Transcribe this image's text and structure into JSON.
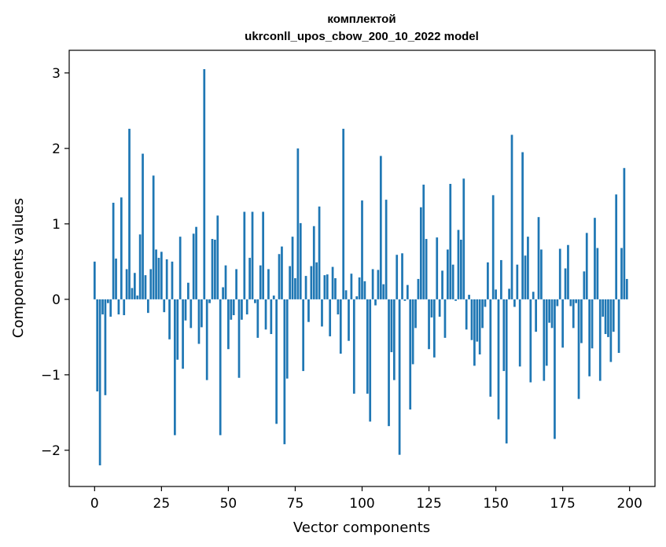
{
  "chart_data": {
    "type": "bar",
    "title_lines": [
      "комплектой",
      "ukrconll_upos_cbow_200_10_2022 model"
    ],
    "xlabel": "Vector components",
    "ylabel": "Components values",
    "xlim": [
      -9.5,
      209.5
    ],
    "ylim": [
      -2.48,
      3.3
    ],
    "xticks": [
      0,
      25,
      50,
      75,
      100,
      125,
      150,
      175,
      200
    ],
    "yticks": [
      -2,
      -1,
      0,
      1,
      2,
      3
    ],
    "ytick_labels": [
      "−2",
      "−1",
      "0",
      "1",
      "2",
      "3"
    ],
    "bar_color": "#1f77b4",
    "grid": false,
    "x": [
      0,
      1,
      2,
      3,
      4,
      5,
      6,
      7,
      8,
      9,
      10,
      11,
      12,
      13,
      14,
      15,
      16,
      17,
      18,
      19,
      20,
      21,
      22,
      23,
      24,
      25,
      26,
      27,
      28,
      29,
      30,
      31,
      32,
      33,
      34,
      35,
      36,
      37,
      38,
      39,
      40,
      41,
      42,
      43,
      44,
      45,
      46,
      47,
      48,
      49,
      50,
      51,
      52,
      53,
      54,
      55,
      56,
      57,
      58,
      59,
      60,
      61,
      62,
      63,
      64,
      65,
      66,
      67,
      68,
      69,
      70,
      71,
      72,
      73,
      74,
      75,
      76,
      77,
      78,
      79,
      80,
      81,
      82,
      83,
      84,
      85,
      86,
      87,
      88,
      89,
      90,
      91,
      92,
      93,
      94,
      95,
      96,
      97,
      98,
      99,
      100,
      101,
      102,
      103,
      104,
      105,
      106,
      107,
      108,
      109,
      110,
      111,
      112,
      113,
      114,
      115,
      116,
      117,
      118,
      119,
      120,
      121,
      122,
      123,
      124,
      125,
      126,
      127,
      128,
      129,
      130,
      131,
      132,
      133,
      134,
      135,
      136,
      137,
      138,
      139,
      140,
      141,
      142,
      143,
      144,
      145,
      146,
      147,
      148,
      149,
      150,
      151,
      152,
      153,
      154,
      155,
      156,
      157,
      158,
      159,
      160,
      161,
      162,
      163,
      164,
      165,
      166,
      167,
      168,
      169,
      170,
      171,
      172,
      173,
      174,
      175,
      176,
      177,
      178,
      179,
      180,
      181,
      182,
      183,
      184,
      185,
      186,
      187,
      188,
      189,
      190,
      191,
      192,
      193,
      194,
      195,
      196,
      197,
      198,
      199
    ],
    "values": [
      0.5,
      -1.22,
      -2.2,
      -0.2,
      -1.27,
      -0.05,
      -0.23,
      1.28,
      0.54,
      -0.2,
      1.35,
      -0.21,
      0.4,
      2.26,
      0.15,
      0.35,
      0.05,
      0.86,
      1.93,
      0.32,
      -0.18,
      0.4,
      1.64,
      0.66,
      0.55,
      0.63,
      -0.17,
      0.53,
      -0.53,
      0.5,
      -1.8,
      -0.8,
      0.83,
      -0.92,
      -0.28,
      0.22,
      -0.38,
      0.87,
      0.96,
      -0.59,
      -0.37,
      3.05,
      -1.07,
      -0.05,
      0.8,
      0.79,
      1.11,
      -1.8,
      0.16,
      0.45,
      -0.66,
      -0.27,
      -0.21,
      0.4,
      -1.04,
      -0.27,
      1.16,
      -0.2,
      0.55,
      1.16,
      -0.05,
      -0.51,
      0.45,
      1.16,
      -0.4,
      0.4,
      -0.46,
      0.05,
      -1.65,
      0.6,
      0.7,
      -1.92,
      -1.05,
      0.44,
      0.83,
      0.28,
      2.0,
      1.01,
      -0.95,
      0.31,
      -0.3,
      0.44,
      0.97,
      0.49,
      1.23,
      -0.36,
      0.32,
      0.33,
      -0.49,
      0.43,
      0.28,
      -0.2,
      -0.72,
      2.26,
      0.12,
      -0.55,
      0.34,
      -1.25,
      0.04,
      0.29,
      1.31,
      0.24,
      -1.25,
      -1.62,
      0.4,
      -0.08,
      0.39,
      1.9,
      0.2,
      1.32,
      -1.68,
      -0.7,
      -1.07,
      0.59,
      -2.06,
      0.61,
      -0.02,
      0.19,
      -1.46,
      -0.86,
      -0.38,
      0.27,
      1.22,
      1.52,
      0.8,
      -0.66,
      -0.24,
      -0.77,
      0.82,
      -0.23,
      0.38,
      -0.51,
      0.66,
      1.53,
      0.46,
      -0.02,
      0.92,
      0.79,
      1.6,
      -0.4,
      0.06,
      -0.54,
      -0.88,
      -0.56,
      -0.73,
      -0.38,
      -0.1,
      0.49,
      -1.29,
      1.38,
      0.13,
      -1.59,
      0.52,
      -0.95,
      -1.91,
      0.14,
      2.18,
      -0.1,
      0.46,
      -0.89,
      1.95,
      0.58,
      0.83,
      -1.1,
      0.1,
      -0.43,
      1.09,
      0.66,
      -1.08,
      -0.88,
      -0.31,
      -0.38,
      -1.85,
      -0.09,
      0.67,
      -0.64,
      0.41,
      0.72,
      -0.09,
      -0.38,
      -0.05,
      -1.32,
      -0.58,
      0.37,
      0.88,
      -1.02,
      -0.65,
      1.08,
      0.68,
      -1.08,
      -0.23,
      -0.46,
      -0.5,
      -0.83,
      -0.43,
      1.39,
      -0.71,
      0.68,
      1.74,
      0.27
    ]
  }
}
